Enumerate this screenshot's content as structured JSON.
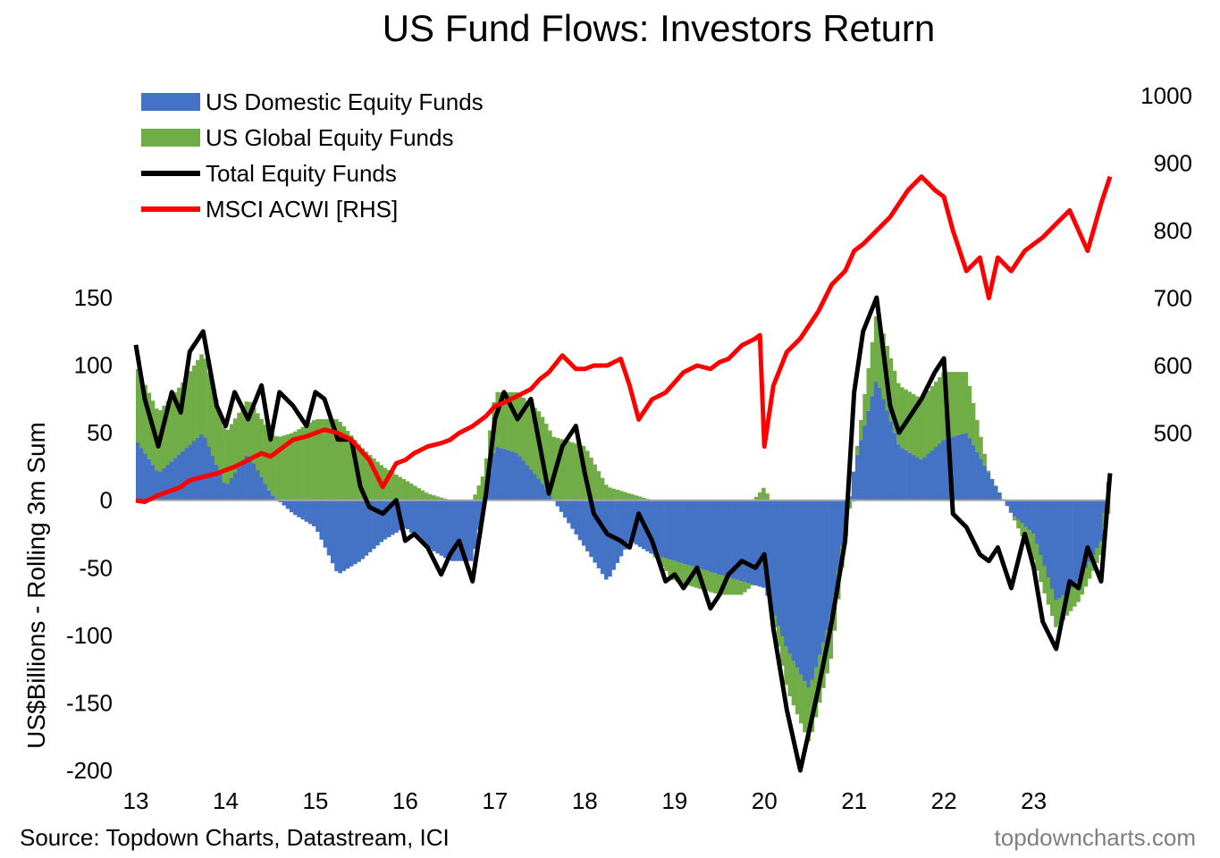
{
  "chart_data": {
    "type": "bar",
    "title": "US Fund Flows: Investors Return",
    "ylabel": "US$Billions - Rolling 3m Sum",
    "ylim": [
      -200,
      150
    ],
    "y_ticks": [
      150,
      100,
      50,
      0,
      -50,
      -100,
      -150,
      -200
    ],
    "y2lim": [
      400,
      1000
    ],
    "y2_ticks": [
      1000,
      900,
      800,
      700,
      600,
      500
    ],
    "x_ticks": [
      "13",
      "14",
      "15",
      "16",
      "17",
      "18",
      "19",
      "20",
      "21",
      "22",
      "23"
    ],
    "x_tick_years": [
      2013,
      2014,
      2015,
      2016,
      2017,
      2018,
      2019,
      2020,
      2021,
      2022,
      2023
    ],
    "x_range": [
      2013.0,
      2023.85
    ],
    "legend_position": "top-left",
    "grid": false,
    "series": [
      {
        "name": "US Domestic Equity Funds",
        "kind": "bar",
        "color": "#4472C4",
        "x": [
          2013.0,
          2013.25,
          2013.5,
          2013.75,
          2014.0,
          2014.25,
          2014.5,
          2014.75,
          2015.0,
          2015.25,
          2015.5,
          2015.75,
          2016.0,
          2016.25,
          2016.5,
          2016.75,
          2017.0,
          2017.25,
          2017.5,
          2017.75,
          2018.0,
          2018.25,
          2018.5,
          2018.75,
          2019.0,
          2019.25,
          2019.5,
          2019.75,
          2020.0,
          2020.25,
          2020.5,
          2020.75,
          2021.0,
          2021.25,
          2021.5,
          2021.75,
          2022.0,
          2022.25,
          2022.5,
          2022.75,
          2023.0,
          2023.25,
          2023.5,
          2023.75,
          2023.85
        ],
        "values": [
          45,
          20,
          35,
          50,
          10,
          35,
          5,
          -10,
          -20,
          -55,
          -45,
          -30,
          -20,
          -35,
          -45,
          -45,
          40,
          35,
          15,
          -10,
          -35,
          -60,
          -30,
          -40,
          -45,
          -50,
          -55,
          -60,
          -65,
          -110,
          -140,
          -85,
          25,
          90,
          40,
          30,
          45,
          50,
          20,
          -10,
          -25,
          -75,
          -60,
          -30,
          25
        ]
      },
      {
        "name": "US Global Equity Funds",
        "kind": "bar",
        "color": "#70AD47",
        "x": [
          2013.0,
          2013.25,
          2013.5,
          2013.75,
          2014.0,
          2014.25,
          2014.5,
          2014.75,
          2015.0,
          2015.25,
          2015.5,
          2015.75,
          2016.0,
          2016.25,
          2016.5,
          2016.75,
          2017.0,
          2017.25,
          2017.5,
          2017.75,
          2018.0,
          2018.25,
          2018.5,
          2018.75,
          2019.0,
          2019.25,
          2019.5,
          2019.75,
          2020.0,
          2020.25,
          2020.5,
          2020.75,
          2021.0,
          2021.25,
          2021.5,
          2021.75,
          2022.0,
          2022.25,
          2022.5,
          2022.75,
          2023.0,
          2023.25,
          2023.5,
          2023.75,
          2023.85
        ],
        "values": [
          55,
          45,
          50,
          60,
          40,
          40,
          45,
          50,
          60,
          60,
          40,
          25,
          15,
          5,
          0,
          0,
          40,
          45,
          50,
          45,
          40,
          10,
          5,
          0,
          -15,
          -15,
          -15,
          -10,
          10,
          -30,
          -40,
          -30,
          0,
          50,
          45,
          45,
          50,
          45,
          0,
          0,
          -20,
          -20,
          -15,
          -10,
          -10
        ]
      },
      {
        "name": "Total Equity Funds",
        "kind": "line",
        "color": "#000000",
        "x": [
          2013.0,
          2013.1,
          2013.25,
          2013.4,
          2013.5,
          2013.6,
          2013.75,
          2013.9,
          2014.0,
          2014.1,
          2014.25,
          2014.4,
          2014.5,
          2014.6,
          2014.75,
          2014.9,
          2015.0,
          2015.1,
          2015.25,
          2015.4,
          2015.5,
          2015.6,
          2015.75,
          2015.9,
          2016.0,
          2016.1,
          2016.25,
          2016.4,
          2016.5,
          2016.6,
          2016.75,
          2016.9,
          2017.0,
          2017.1,
          2017.25,
          2017.4,
          2017.5,
          2017.6,
          2017.75,
          2017.9,
          2018.0,
          2018.1,
          2018.25,
          2018.4,
          2018.5,
          2018.6,
          2018.75,
          2018.9,
          2019.0,
          2019.1,
          2019.25,
          2019.4,
          2019.5,
          2019.6,
          2019.75,
          2019.9,
          2020.0,
          2020.1,
          2020.25,
          2020.4,
          2020.5,
          2020.6,
          2020.75,
          2020.9,
          2021.0,
          2021.1,
          2021.25,
          2021.4,
          2021.5,
          2021.6,
          2021.75,
          2021.9,
          2022.0,
          2022.1,
          2022.25,
          2022.4,
          2022.5,
          2022.6,
          2022.75,
          2022.9,
          2023.0,
          2023.1,
          2023.25,
          2023.4,
          2023.5,
          2023.6,
          2023.75,
          2023.85
        ],
        "values": [
          115,
          75,
          40,
          80,
          65,
          110,
          125,
          70,
          55,
          80,
          60,
          85,
          45,
          80,
          70,
          55,
          80,
          75,
          45,
          45,
          10,
          -5,
          -10,
          0,
          -30,
          -25,
          -35,
          -55,
          -40,
          -30,
          -60,
          5,
          60,
          80,
          60,
          75,
          40,
          5,
          40,
          55,
          20,
          -10,
          -25,
          -30,
          -35,
          -10,
          -30,
          -60,
          -55,
          -65,
          -50,
          -80,
          -70,
          -55,
          -45,
          -50,
          -40,
          -95,
          -155,
          -200,
          -170,
          -140,
          -90,
          -30,
          80,
          125,
          150,
          70,
          50,
          60,
          75,
          95,
          105,
          -10,
          -20,
          -40,
          -45,
          -35,
          -65,
          -25,
          -50,
          -90,
          -110,
          -60,
          -65,
          -35,
          -60,
          20
        ]
      },
      {
        "name": "MSCI ACWI [RHS]",
        "kind": "line",
        "axis": "right",
        "color": "#FF0000",
        "x": [
          2013.0,
          2013.1,
          2013.25,
          2013.4,
          2013.5,
          2013.6,
          2013.75,
          2013.9,
          2014.0,
          2014.1,
          2014.25,
          2014.4,
          2014.5,
          2014.6,
          2014.75,
          2014.9,
          2015.0,
          2015.1,
          2015.25,
          2015.4,
          2015.5,
          2015.6,
          2015.75,
          2015.9,
          2016.0,
          2016.1,
          2016.25,
          2016.4,
          2016.5,
          2016.6,
          2016.75,
          2016.9,
          2017.0,
          2017.1,
          2017.25,
          2017.4,
          2017.5,
          2017.6,
          2017.75,
          2017.9,
          2018.0,
          2018.1,
          2018.25,
          2018.4,
          2018.5,
          2018.6,
          2018.75,
          2018.9,
          2019.0,
          2019.1,
          2019.25,
          2019.4,
          2019.5,
          2019.6,
          2019.75,
          2019.9,
          2019.95,
          2020.0,
          2020.1,
          2020.25,
          2020.4,
          2020.5,
          2020.6,
          2020.75,
          2020.9,
          2021.0,
          2021.1,
          2021.25,
          2021.4,
          2021.5,
          2021.6,
          2021.75,
          2021.9,
          2022.0,
          2022.1,
          2022.25,
          2022.4,
          2022.5,
          2022.6,
          2022.75,
          2022.9,
          2023.0,
          2023.1,
          2023.25,
          2023.4,
          2023.5,
          2023.6,
          2023.75,
          2023.85
        ],
        "values": [
          400,
          398,
          408,
          415,
          420,
          430,
          435,
          440,
          445,
          450,
          460,
          470,
          465,
          475,
          490,
          495,
          500,
          505,
          500,
          490,
          475,
          460,
          420,
          455,
          460,
          470,
          480,
          485,
          490,
          500,
          510,
          525,
          540,
          545,
          555,
          565,
          580,
          590,
          615,
          595,
          595,
          600,
          600,
          610,
          570,
          520,
          550,
          560,
          575,
          590,
          600,
          595,
          605,
          610,
          630,
          640,
          645,
          480,
          570,
          620,
          640,
          660,
          680,
          720,
          740,
          770,
          780,
          800,
          820,
          840,
          860,
          880,
          860,
          850,
          800,
          740,
          760,
          700,
          760,
          740,
          770,
          780,
          790,
          810,
          830,
          800,
          770,
          840,
          880
        ]
      }
    ]
  },
  "footer": {
    "source": "Source: Topdown Charts, Datastream, ICI",
    "brand": "topdowncharts.com"
  }
}
